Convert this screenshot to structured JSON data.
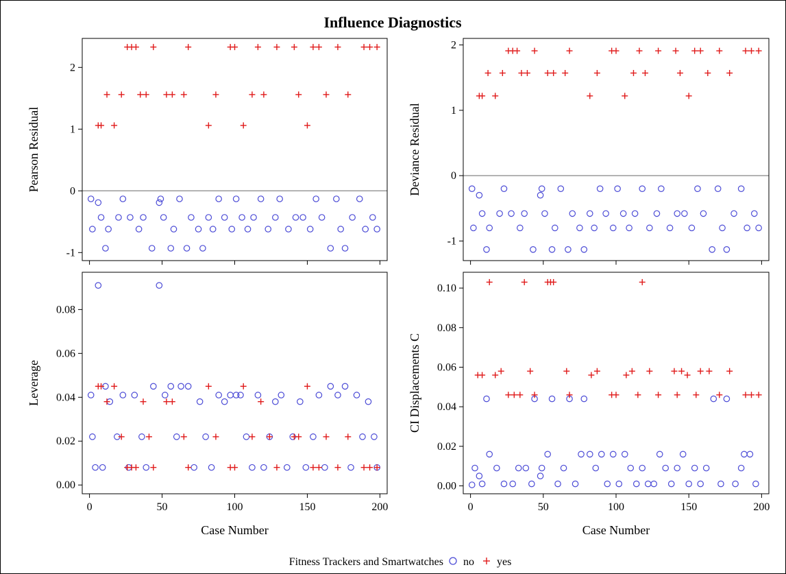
{
  "figure_title": "Influence Diagnostics",
  "colors": {
    "no": "#4b4bd6",
    "yes": "#e01b1b",
    "zero_line": "#9a9a9a"
  },
  "legend": {
    "title": "Fitness Trackers and Smartwatches",
    "no_label": "no",
    "yes_label": "yes"
  },
  "chart_data": [
    {
      "type": "scatter",
      "xlabel": "",
      "ylabel": "Pearson Residual",
      "xlim": [
        -5,
        205
      ],
      "ylim": [
        -1.13,
        2.47
      ],
      "xticks": [
        0,
        50,
        100,
        150,
        200
      ],
      "yticks": [
        -1,
        0,
        1,
        2
      ],
      "ytick_labels": [
        "-1",
        "0",
        "1",
        "2"
      ],
      "reference_line": 0,
      "series": [
        {
          "name": "no",
          "marker": "circle",
          "x": [
            1,
            2,
            6,
            8,
            11,
            13,
            20,
            23,
            28,
            34,
            37,
            43,
            48,
            49,
            51,
            56,
            58,
            62,
            67,
            70,
            75,
            78,
            82,
            85,
            89,
            93,
            98,
            101,
            105,
            109,
            113,
            118,
            123,
            128,
            131,
            137,
            142,
            147,
            152,
            156,
            160,
            166,
            170,
            173,
            176,
            181,
            186,
            190,
            195,
            198
          ],
          "y": [
            -0.13,
            -0.62,
            -0.19,
            -0.43,
            -0.93,
            -0.62,
            -0.43,
            -0.13,
            -0.43,
            -0.62,
            -0.43,
            -0.93,
            -0.19,
            -0.13,
            -0.43,
            -0.93,
            -0.62,
            -0.13,
            -0.93,
            -0.43,
            -0.62,
            -0.93,
            -0.43,
            -0.62,
            -0.13,
            -0.43,
            -0.62,
            -0.13,
            -0.43,
            -0.62,
            -0.43,
            -0.13,
            -0.62,
            -0.43,
            -0.13,
            -0.62,
            -0.43,
            -0.43,
            -0.62,
            -0.13,
            -0.43,
            -0.93,
            -0.13,
            -0.62,
            -0.93,
            -0.43,
            -0.13,
            -0.62,
            -0.43,
            -0.62
          ]
        },
        {
          "name": "yes",
          "marker": "plus",
          "x": [
            6,
            8,
            12,
            17,
            22,
            26,
            29,
            32,
            35,
            39,
            44,
            53,
            57,
            65,
            68,
            82,
            87,
            97,
            100,
            106,
            112,
            116,
            120,
            129,
            141,
            144,
            150,
            154,
            158,
            163,
            171,
            178,
            189,
            193,
            198
          ],
          "y": [
            1.06,
            1.06,
            1.56,
            1.06,
            1.56,
            2.33,
            2.33,
            2.33,
            1.56,
            1.56,
            2.33,
            1.56,
            1.56,
            1.56,
            2.33,
            1.06,
            1.56,
            2.33,
            2.33,
            1.06,
            1.56,
            2.33,
            1.56,
            2.33,
            2.33,
            1.56,
            1.06,
            2.33,
            2.33,
            1.56,
            2.33,
            1.56,
            2.33,
            2.33,
            2.33
          ]
        }
      ]
    },
    {
      "type": "scatter",
      "xlabel": "",
      "ylabel": "Deviance Residual",
      "xlim": [
        -5,
        205
      ],
      "ylim": [
        -1.3,
        2.1
      ],
      "xticks": [
        0,
        50,
        100,
        150,
        200
      ],
      "yticks": [
        -1,
        0,
        1,
        2
      ],
      "ytick_labels": [
        "-1",
        "0",
        "1",
        "2"
      ],
      "reference_line": 0,
      "series": [
        {
          "name": "no",
          "marker": "circle",
          "x": [
            1,
            2,
            6,
            8,
            11,
            13,
            20,
            23,
            28,
            34,
            37,
            43,
            48,
            49,
            51,
            56,
            58,
            62,
            67,
            70,
            75,
            78,
            82,
            85,
            89,
            93,
            98,
            101,
            105,
            109,
            113,
            118,
            123,
            128,
            131,
            137,
            142,
            147,
            152,
            156,
            160,
            166,
            170,
            173,
            176,
            181,
            186,
            190,
            195,
            198
          ],
          "y": [
            -0.2,
            -0.8,
            -0.3,
            -0.58,
            -1.13,
            -0.8,
            -0.58,
            -0.2,
            -0.58,
            -0.8,
            -0.58,
            -1.13,
            -0.3,
            -0.2,
            -0.58,
            -1.13,
            -0.8,
            -0.2,
            -1.13,
            -0.58,
            -0.8,
            -1.13,
            -0.58,
            -0.8,
            -0.2,
            -0.58,
            -0.8,
            -0.2,
            -0.58,
            -0.8,
            -0.58,
            -0.2,
            -0.8,
            -0.58,
            -0.2,
            -0.8,
            -0.58,
            -0.58,
            -0.8,
            -0.2,
            -0.58,
            -1.13,
            -0.2,
            -0.8,
            -1.13,
            -0.58,
            -0.2,
            -0.8,
            -0.58,
            -0.8
          ]
        },
        {
          "name": "yes",
          "marker": "plus",
          "x": [
            6,
            8,
            12,
            17,
            22,
            26,
            29,
            32,
            35,
            39,
            44,
            53,
            57,
            65,
            68,
            82,
            87,
            97,
            100,
            106,
            112,
            116,
            120,
            129,
            141,
            144,
            150,
            154,
            158,
            163,
            171,
            178,
            189,
            193,
            198
          ],
          "y": [
            1.22,
            1.22,
            1.57,
            1.22,
            1.57,
            1.91,
            1.91,
            1.91,
            1.57,
            1.57,
            1.91,
            1.57,
            1.57,
            1.57,
            1.91,
            1.22,
            1.57,
            1.91,
            1.91,
            1.22,
            1.57,
            1.91,
            1.57,
            1.91,
            1.91,
            1.57,
            1.22,
            1.91,
            1.91,
            1.57,
            1.91,
            1.57,
            1.91,
            1.91,
            1.91
          ]
        }
      ]
    },
    {
      "type": "scatter",
      "xlabel": "Case Number",
      "ylabel": "Leverage",
      "xlim": [
        -5,
        205
      ],
      "ylim": [
        -0.004,
        0.097
      ],
      "xticks": [
        0,
        50,
        100,
        150,
        200
      ],
      "xtick_labels": [
        "0",
        "50",
        "100",
        "150",
        "200"
      ],
      "yticks": [
        0,
        0.02,
        0.04,
        0.06,
        0.08
      ],
      "ytick_labels": [
        "0.00",
        "0.02",
        "0.04",
        "0.06",
        "0.08"
      ],
      "series": [
        {
          "name": "no",
          "marker": "circle",
          "x": [
            1,
            2,
            4,
            6,
            9,
            11,
            14,
            19,
            23,
            27,
            31,
            36,
            39,
            44,
            48,
            52,
            56,
            60,
            63,
            68,
            72,
            76,
            80,
            84,
            89,
            93,
            97,
            101,
            104,
            108,
            112,
            116,
            120,
            124,
            128,
            132,
            136,
            140,
            145,
            149,
            154,
            158,
            162,
            166,
            171,
            176,
            180,
            184,
            188,
            192,
            196,
            198
          ],
          "y": [
            0.041,
            0.022,
            0.008,
            0.091,
            0.008,
            0.045,
            0.038,
            0.022,
            0.041,
            0.008,
            0.041,
            0.022,
            0.008,
            0.045,
            0.091,
            0.041,
            0.045,
            0.022,
            0.045,
            0.045,
            0.008,
            0.038,
            0.022,
            0.008,
            0.041,
            0.038,
            0.041,
            0.041,
            0.041,
            0.022,
            0.008,
            0.041,
            0.008,
            0.022,
            0.038,
            0.041,
            0.008,
            0.022,
            0.038,
            0.008,
            0.022,
            0.041,
            0.008,
            0.045,
            0.041,
            0.045,
            0.008,
            0.041,
            0.022,
            0.038,
            0.022,
            0.008
          ]
        },
        {
          "name": "yes",
          "marker": "plus",
          "x": [
            6,
            8,
            12,
            17,
            22,
            26,
            29,
            32,
            37,
            41,
            44,
            53,
            57,
            65,
            68,
            82,
            87,
            97,
            100,
            106,
            112,
            118,
            124,
            129,
            141,
            144,
            150,
            154,
            158,
            163,
            171,
            178,
            189,
            193,
            198
          ],
          "y": [
            0.045,
            0.045,
            0.038,
            0.045,
            0.022,
            0.008,
            0.008,
            0.008,
            0.038,
            0.022,
            0.008,
            0.038,
            0.038,
            0.022,
            0.008,
            0.045,
            0.022,
            0.008,
            0.008,
            0.045,
            0.022,
            0.038,
            0.022,
            0.008,
            0.022,
            0.022,
            0.045,
            0.008,
            0.008,
            0.022,
            0.008,
            0.022,
            0.008,
            0.008,
            0.008
          ]
        }
      ]
    },
    {
      "type": "scatter",
      "xlabel": "Case Number",
      "ylabel": "CI Displacements C",
      "xlim": [
        -5,
        205
      ],
      "ylim": [
        -0.004,
        0.108
      ],
      "xticks": [
        0,
        50,
        100,
        150,
        200
      ],
      "xtick_labels": [
        "0",
        "50",
        "100",
        "150",
        "200"
      ],
      "yticks": [
        0,
        0.02,
        0.04,
        0.06,
        0.08,
        0.1
      ],
      "ytick_labels": [
        "0.00",
        "0.02",
        "0.04",
        "0.06",
        "0.08",
        "0.10"
      ],
      "series": [
        {
          "name": "no",
          "marker": "circle",
          "x": [
            1,
            3,
            6,
            8,
            11,
            13,
            18,
            23,
            29,
            33,
            38,
            42,
            44,
            48,
            49,
            53,
            56,
            60,
            64,
            68,
            72,
            76,
            78,
            82,
            86,
            90,
            94,
            98,
            102,
            106,
            110,
            114,
            118,
            122,
            126,
            130,
            134,
            138,
            142,
            146,
            150,
            154,
            158,
            162,
            167,
            172,
            176,
            182,
            186,
            188,
            192,
            196
          ],
          "y": [
            0.0005,
            0.009,
            0.005,
            0.001,
            0.044,
            0.016,
            0.009,
            0.001,
            0.001,
            0.009,
            0.009,
            0.001,
            0.044,
            0.005,
            0.009,
            0.016,
            0.044,
            0.001,
            0.009,
            0.044,
            0.001,
            0.016,
            0.044,
            0.016,
            0.009,
            0.016,
            0.001,
            0.016,
            0.001,
            0.016,
            0.009,
            0.001,
            0.009,
            0.001,
            0.001,
            0.016,
            0.009,
            0.001,
            0.009,
            0.016,
            0.001,
            0.009,
            0.001,
            0.009,
            0.044,
            0.001,
            0.044,
            0.001,
            0.009,
            0.016,
            0.016,
            0.001
          ]
        },
        {
          "name": "yes",
          "marker": "plus",
          "x": [
            5,
            8,
            13,
            17,
            21,
            26,
            30,
            34,
            37,
            41,
            44,
            53,
            55,
            57,
            66,
            68,
            83,
            87,
            97,
            100,
            107,
            111,
            115,
            118,
            123,
            129,
            140,
            142,
            145,
            149,
            155,
            158,
            164,
            171,
            178,
            189,
            193,
            198
          ],
          "y": [
            0.056,
            0.056,
            0.103,
            0.056,
            0.058,
            0.046,
            0.046,
            0.046,
            0.103,
            0.058,
            0.046,
            0.103,
            0.103,
            0.103,
            0.058,
            0.046,
            0.056,
            0.058,
            0.046,
            0.046,
            0.056,
            0.058,
            0.046,
            0.103,
            0.058,
            0.046,
            0.058,
            0.046,
            0.058,
            0.056,
            0.046,
            0.058,
            0.058,
            0.046,
            0.058,
            0.046,
            0.046,
            0.046
          ]
        }
      ]
    }
  ]
}
